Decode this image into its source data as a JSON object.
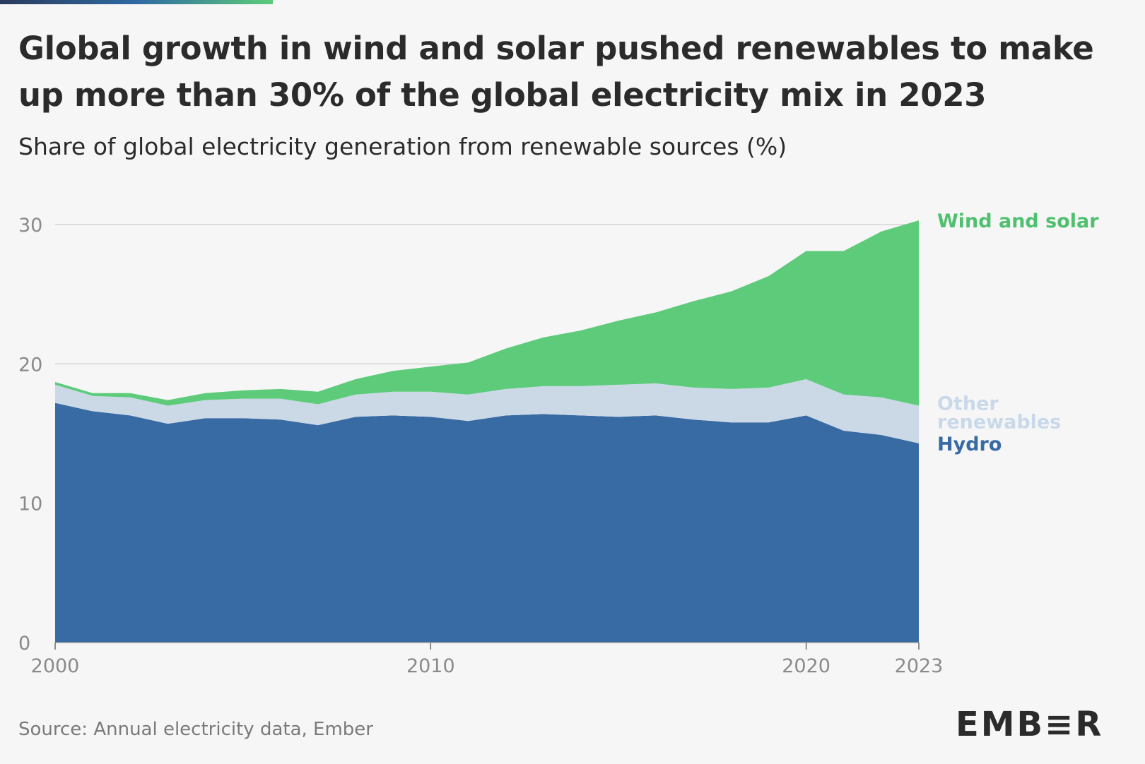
{
  "header": {
    "title": "Global growth in wind and solar pushed renewables to make up more than 30% of the global electricity mix in 2023",
    "subtitle": "Share of global electricity generation from renewable sources (%)"
  },
  "footer": {
    "source": "Source: Annual electricity data, Ember",
    "logo": "EMB≡R"
  },
  "colors": {
    "hydro": "#386aa3",
    "other": "#cbd9e7",
    "wind_solar": "#5ecb7b",
    "grid": "#dddddd",
    "axis_text": "#8a8a8a",
    "hydro_label": "#386aa3",
    "other_label": "#c9d9ea",
    "wind_solar_label": "#4fc06f"
  },
  "chart_data": {
    "type": "area",
    "stacked": true,
    "x": [
      2000,
      2001,
      2002,
      2003,
      2004,
      2005,
      2006,
      2007,
      2008,
      2009,
      2010,
      2011,
      2012,
      2013,
      2014,
      2015,
      2016,
      2017,
      2018,
      2019,
      2020,
      2021,
      2022,
      2023
    ],
    "series": [
      {
        "name": "Hydro",
        "key": "hydro",
        "values": [
          17.2,
          16.6,
          16.3,
          15.7,
          16.1,
          16.1,
          16.0,
          15.6,
          16.2,
          16.3,
          16.2,
          15.9,
          16.3,
          16.4,
          16.3,
          16.2,
          16.3,
          16.0,
          15.8,
          15.8,
          16.3,
          15.2,
          14.9,
          14.3
        ]
      },
      {
        "name": "Other renewables",
        "key": "other",
        "values": [
          1.3,
          1.1,
          1.3,
          1.3,
          1.3,
          1.4,
          1.5,
          1.5,
          1.6,
          1.7,
          1.8,
          1.9,
          1.9,
          2.0,
          2.1,
          2.3,
          2.3,
          2.3,
          2.4,
          2.5,
          2.6,
          2.6,
          2.7,
          2.7
        ]
      },
      {
        "name": "Wind and solar",
        "key": "wind_solar",
        "values": [
          0.2,
          0.2,
          0.3,
          0.4,
          0.5,
          0.6,
          0.7,
          0.9,
          1.1,
          1.5,
          1.8,
          2.3,
          2.9,
          3.5,
          4.0,
          4.6,
          5.1,
          6.2,
          7.0,
          8.0,
          9.2,
          10.3,
          11.9,
          13.3
        ]
      }
    ],
    "ylim": [
      0,
      30
    ],
    "yticks": [
      0,
      10,
      20,
      30
    ],
    "xticks": [
      2000,
      2010,
      2020,
      2023
    ],
    "grid": true,
    "legend": "inline-right"
  }
}
